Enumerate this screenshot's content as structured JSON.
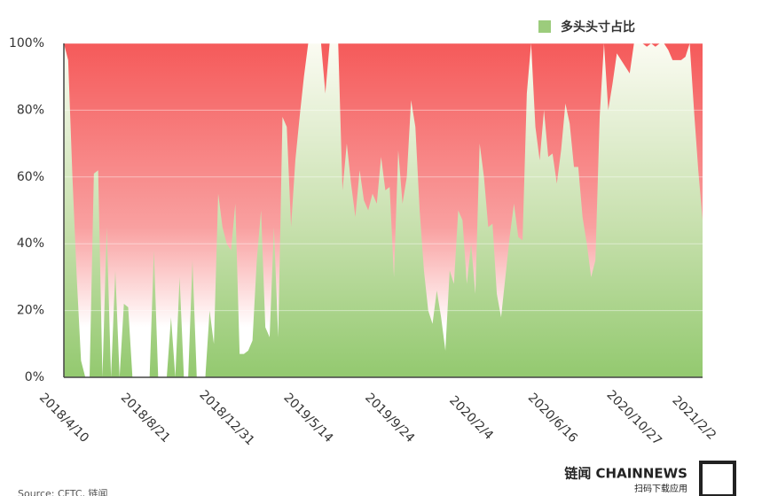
{
  "chart_data": {
    "type": "area",
    "legend": "多头头寸占比",
    "source": "Source: CFTC, 链闻",
    "brand": "链闻 CHAINNEWS",
    "brand_sub": "扫码下载应用",
    "color": "#9ccc7c",
    "background_color": "#f55a5a",
    "categories": [
      "2018/4/10",
      null,
      null,
      null,
      null,
      null,
      null,
      null,
      null,
      null,
      null,
      null,
      null,
      null,
      null,
      null,
      null,
      null,
      null,
      "2018/8/21",
      null,
      null,
      null,
      null,
      null,
      null,
      null,
      null,
      null,
      null,
      null,
      null,
      null,
      null,
      null,
      null,
      null,
      null,
      "2018/12/31",
      null,
      null,
      null,
      null,
      null,
      null,
      null,
      null,
      null,
      null,
      null,
      null,
      null,
      null,
      null,
      null,
      null,
      null,
      "2019/5/14",
      null,
      null,
      null,
      null,
      null,
      null,
      null,
      null,
      null,
      null,
      null,
      null,
      null,
      null,
      null,
      null,
      null,
      null,
      "2019/9/24",
      null,
      null,
      null,
      null,
      null,
      null,
      null,
      null,
      null,
      null,
      null,
      null,
      null,
      null,
      null,
      null,
      null,
      null,
      "2020/2/4",
      null,
      null,
      null,
      null,
      null,
      null,
      null,
      null,
      null,
      null,
      null,
      null,
      null,
      null,
      null,
      null,
      null,
      null,
      "2020/6/16",
      null,
      null,
      null,
      null,
      null,
      null,
      null,
      null,
      null,
      null,
      null,
      null,
      null,
      null,
      null,
      null,
      null,
      null,
      "2020/10/27",
      null,
      null,
      null,
      null,
      null,
      null,
      null,
      null,
      null,
      null,
      null,
      null,
      null,
      "2021/2/2",
      null,
      null
    ],
    "values": [
      100,
      95,
      60,
      30,
      5,
      0,
      0,
      61,
      62,
      0,
      45,
      0,
      32,
      0,
      22,
      21,
      0,
      0,
      0,
      0,
      0,
      38,
      0,
      0,
      0,
      18,
      0,
      30,
      0,
      0,
      35,
      0,
      0,
      0,
      20,
      10,
      55,
      45,
      40,
      38,
      52,
      7,
      7,
      8,
      11,
      35,
      50,
      15,
      12,
      45,
      12,
      78,
      75,
      45,
      65,
      78,
      90,
      100,
      100,
      100,
      100,
      85,
      100,
      100,
      100,
      56,
      70,
      58,
      48,
      62,
      53,
      50,
      55,
      52,
      66,
      56,
      57,
      30,
      68,
      52,
      60,
      83,
      75,
      50,
      32,
      20,
      16,
      26,
      18,
      8,
      32,
      28,
      50,
      47,
      28,
      40,
      25,
      70,
      60,
      45,
      46,
      25,
      18,
      30,
      42,
      52,
      42,
      41,
      85,
      100,
      75,
      65,
      80,
      66,
      67,
      58,
      68,
      82,
      76,
      63,
      63,
      48,
      40,
      30,
      35,
      78,
      100,
      80,
      88,
      97,
      95,
      93,
      91,
      100,
      100,
      100,
      99,
      100,
      99,
      100,
      100,
      98,
      95,
      95,
      95,
      96,
      100,
      80,
      62,
      47
    ],
    "ylim": [
      0,
      100
    ],
    "yticks": [
      {
        "value": 0,
        "label": "0%"
      },
      {
        "value": 20,
        "label": "20%"
      },
      {
        "value": 40,
        "label": "40%"
      },
      {
        "value": 60,
        "label": "60%"
      },
      {
        "value": 80,
        "label": "80%"
      },
      {
        "value": 100,
        "label": "100%"
      }
    ],
    "grid": true
  }
}
